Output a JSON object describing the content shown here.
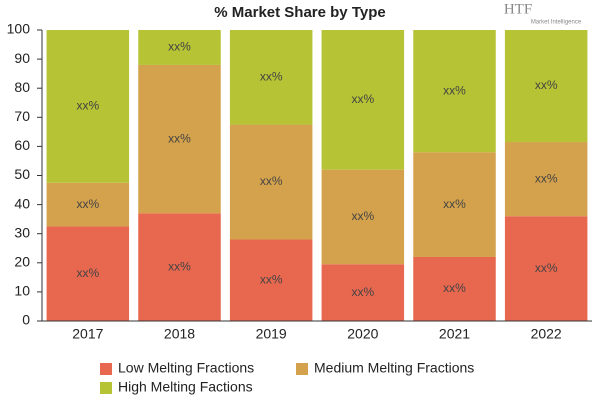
{
  "chart_data": {
    "type": "stacked_bar",
    "title": "% Market Share by Type",
    "logo": {
      "text": "HTF",
      "subtitle": "Market Intelligence"
    },
    "categories": [
      "2017",
      "2018",
      "2019",
      "2020",
      "2021",
      "2022"
    ],
    "series": [
      {
        "name": "Low Melting Fractions",
        "color": "#e8674f",
        "values": [
          32.5,
          37,
          28,
          19.5,
          22,
          36
        ],
        "value_labels": [
          "xx%",
          "xx%",
          "xx%",
          "xx%",
          "xx%",
          "xx%"
        ]
      },
      {
        "name": "Medium Melting Fractions",
        "color": "#d4a24c",
        "values": [
          15,
          51,
          39.5,
          32.5,
          36,
          25.5
        ],
        "value_labels": [
          "xx%",
          "xx%",
          "xx%",
          "xx%",
          "xx%",
          "xx%"
        ]
      },
      {
        "name": "High Melting Factions",
        "color": "#b5c334",
        "values": [
          52.5,
          12,
          32.5,
          48,
          42,
          38.5
        ],
        "value_labels": [
          "xx%",
          "xx%",
          "xx%",
          "xx%",
          "xx%",
          "xx%"
        ]
      }
    ],
    "ylim": [
      0,
      100
    ],
    "yticks": [
      0,
      10,
      20,
      30,
      40,
      50,
      60,
      70,
      80,
      90,
      100
    ],
    "legend": "bottom"
  }
}
